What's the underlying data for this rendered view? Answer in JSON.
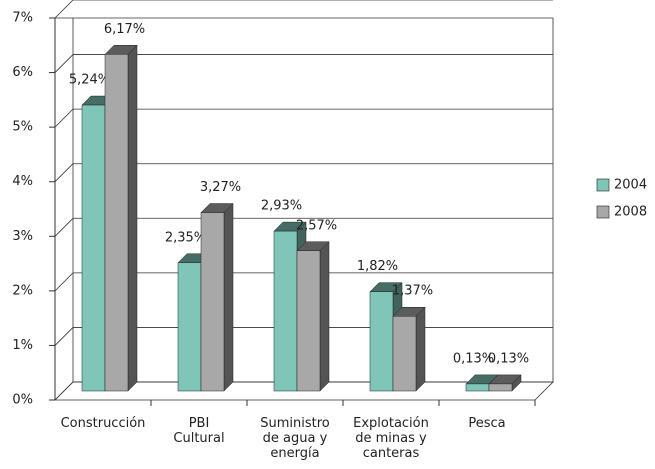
{
  "chart_data": {
    "type": "bar3d",
    "categories": [
      [
        "Construcción"
      ],
      [
        "PBI",
        "Cultural"
      ],
      [
        "Suministro",
        "de agua y",
        "energía"
      ],
      [
        "Explotación",
        "de minas y",
        "canteras"
      ],
      [
        "Pesca"
      ]
    ],
    "series": [
      {
        "name": "2004",
        "color": "#7fc6b8",
        "values": [
          5.24,
          2.35,
          2.93,
          1.82,
          0.13
        ],
        "value_labels": [
          "5,24%",
          "2,35%",
          "2,93%",
          "1,82%",
          "0,13%"
        ]
      },
      {
        "name": "2008",
        "color": "#a8a8a8",
        "values": [
          6.17,
          3.27,
          2.57,
          1.37,
          0.13
        ],
        "value_labels": [
          "6,17%",
          "3,27%",
          "2,57%",
          "1,37%",
          "0,13%"
        ]
      }
    ],
    "ylim": [
      0,
      7
    ],
    "yticks": [
      {
        "value": 0,
        "label": "0%"
      },
      {
        "value": 1,
        "label": "1%"
      },
      {
        "value": 2,
        "label": "2%"
      },
      {
        "value": 3,
        "label": "3%"
      },
      {
        "value": 4,
        "label": "4%"
      },
      {
        "value": 5,
        "label": "5%"
      },
      {
        "value": 6,
        "label": "6%"
      },
      {
        "value": 7,
        "label": "7%"
      }
    ],
    "grid": true,
    "legend": "right"
  }
}
